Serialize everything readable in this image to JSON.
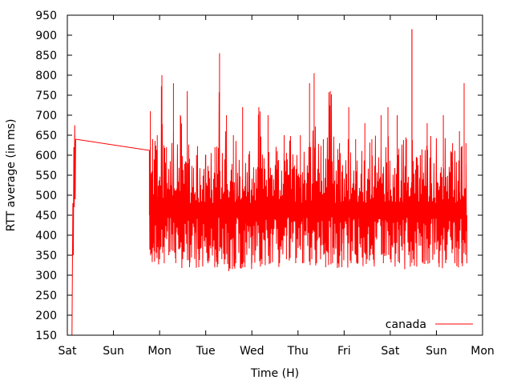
{
  "chart_data": {
    "type": "line",
    "title": "",
    "xlabel": "Time (H)",
    "ylabel": "RTT average (in ms)",
    "x_ticks": [
      "Sat",
      "Sun",
      "Mon",
      "Tue",
      "Wed",
      "Thu",
      "Fri",
      "Sat",
      "Sun",
      "Mon"
    ],
    "xlim_days": [
      0,
      9
    ],
    "ylim": [
      150,
      950
    ],
    "y_ticks": [
      150,
      200,
      250,
      300,
      350,
      400,
      450,
      500,
      550,
      600,
      650,
      700,
      750,
      800,
      850,
      900,
      950
    ],
    "grid": false,
    "legend_position": "bottom-right",
    "series": [
      {
        "name": "canada",
        "color": "#ff0000",
        "summary": {
          "typical_low_ms": 330,
          "typical_high_ms": 650,
          "max_ms": 915,
          "max_at_x_day": 7.47,
          "gap_start_x_day": 0.18,
          "gap_start_y_ms": 640,
          "gap_end_x_day": 1.78,
          "gap_end_y_ms": 612
        },
        "points": [
          [
            0.1,
            150
          ],
          [
            0.12,
            480
          ],
          [
            0.13,
            350
          ],
          [
            0.14,
            620
          ],
          [
            0.15,
            470
          ],
          [
            0.16,
            675
          ],
          [
            0.17,
            490
          ],
          [
            0.18,
            640
          ],
          [
            1.78,
            612
          ],
          [
            1.8,
            710
          ],
          [
            1.82,
            400
          ],
          [
            1.85,
            640
          ],
          [
            1.88,
            360
          ],
          [
            1.95,
            650
          ],
          [
            2.0,
            340
          ],
          [
            2.05,
            800
          ],
          [
            2.1,
            330
          ],
          [
            2.15,
            620
          ],
          [
            2.2,
            350
          ],
          [
            2.3,
            780
          ],
          [
            2.35,
            330
          ],
          [
            2.45,
            700
          ],
          [
            2.5,
            340
          ],
          [
            2.6,
            760
          ],
          [
            2.65,
            320
          ],
          [
            2.8,
            600
          ],
          [
            2.85,
            320
          ],
          [
            3.0,
            600
          ],
          [
            3.05,
            330
          ],
          [
            3.2,
            620
          ],
          [
            3.25,
            320
          ],
          [
            3.3,
            855
          ],
          [
            3.35,
            340
          ],
          [
            3.45,
            700
          ],
          [
            3.5,
            310
          ],
          [
            3.6,
            650
          ],
          [
            3.65,
            330
          ],
          [
            3.8,
            720
          ],
          [
            3.85,
            320
          ],
          [
            3.95,
            610
          ],
          [
            4.0,
            330
          ],
          [
            4.15,
            720
          ],
          [
            4.2,
            340
          ],
          [
            4.35,
            700
          ],
          [
            4.4,
            330
          ],
          [
            4.55,
            610
          ],
          [
            4.6,
            330
          ],
          [
            4.7,
            650
          ],
          [
            4.75,
            340
          ],
          [
            4.9,
            560
          ],
          [
            4.95,
            330
          ],
          [
            5.05,
            650
          ],
          [
            5.1,
            330
          ],
          [
            5.25,
            780
          ],
          [
            5.3,
            340
          ],
          [
            5.35,
            805
          ],
          [
            5.4,
            330
          ],
          [
            5.55,
            640
          ],
          [
            5.6,
            320
          ],
          [
            5.7,
            760
          ],
          [
            5.75,
            330
          ],
          [
            5.9,
            630
          ],
          [
            5.95,
            320
          ],
          [
            6.1,
            720
          ],
          [
            6.15,
            330
          ],
          [
            6.25,
            640
          ],
          [
            6.3,
            330
          ],
          [
            6.45,
            680
          ],
          [
            6.5,
            340
          ],
          [
            6.6,
            640
          ],
          [
            6.65,
            330
          ],
          [
            6.8,
            700
          ],
          [
            6.85,
            330
          ],
          [
            6.95,
            720
          ],
          [
            7.0,
            340
          ],
          [
            7.15,
            700
          ],
          [
            7.2,
            330
          ],
          [
            7.35,
            640
          ],
          [
            7.4,
            350
          ],
          [
            7.47,
            915
          ],
          [
            7.5,
            340
          ],
          [
            7.65,
            600
          ],
          [
            7.7,
            340
          ],
          [
            7.8,
            680
          ],
          [
            7.85,
            330
          ],
          [
            8.0,
            600
          ],
          [
            8.05,
            330
          ],
          [
            8.15,
            700
          ],
          [
            8.2,
            330
          ],
          [
            8.35,
            630
          ],
          [
            8.4,
            330
          ],
          [
            8.5,
            660
          ],
          [
            8.55,
            330
          ],
          [
            8.6,
            780
          ],
          [
            8.62,
            380
          ],
          [
            8.64,
            630
          ],
          [
            8.66,
            330
          ]
        ]
      }
    ]
  }
}
